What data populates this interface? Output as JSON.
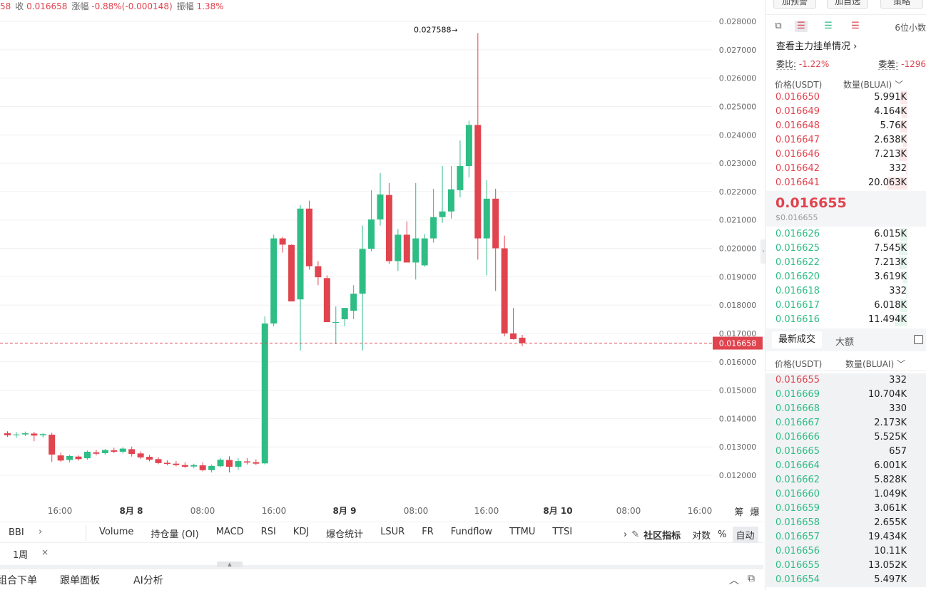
{
  "top_info": {
    "partial": "58",
    "close_label": "收",
    "close_value": "0.016658",
    "change_label": "涨幅",
    "change_value": "-0.88%(-0.000148)",
    "amp_label": "振幅",
    "amp_value": "1.38%"
  },
  "chart_data": {
    "type": "candlestick",
    "y_ticks": [
      "0.028000",
      "0.027000",
      "0.026000",
      "0.025000",
      "0.024000",
      "0.023000",
      "0.022000",
      "0.021000",
      "0.020000",
      "0.019000",
      "0.018000",
      "0.017000",
      "0.016000",
      "0.015000",
      "0.014000",
      "0.013000",
      "0.012000"
    ],
    "x_ticks": [
      "16:00",
      "8月 8",
      "08:00",
      "16:00",
      "8月 9",
      "08:00",
      "16:00",
      "8月 10",
      "08:00",
      "16:00"
    ],
    "current_price_label": "0.016658",
    "current_price": 0.016658,
    "high_label": "0.027588",
    "high_value": 0.027588,
    "ylim": [
      0.0113,
      0.0286
    ],
    "candles": [
      {
        "o": 0.01348,
        "h": 0.01355,
        "l": 0.01336,
        "c": 0.01341
      },
      {
        "o": 0.01342,
        "h": 0.01352,
        "l": 0.01333,
        "c": 0.01344
      },
      {
        "o": 0.01344,
        "h": 0.01354,
        "l": 0.01338,
        "c": 0.01348
      },
      {
        "o": 0.01347,
        "h": 0.01353,
        "l": 0.0132,
        "c": 0.0134
      },
      {
        "o": 0.01341,
        "h": 0.01349,
        "l": 0.01333,
        "c": 0.01345
      },
      {
        "o": 0.01343,
        "h": 0.0135,
        "l": 0.01247,
        "c": 0.01273
      },
      {
        "o": 0.0127,
        "h": 0.0128,
        "l": 0.01248,
        "c": 0.01252
      },
      {
        "o": 0.01254,
        "h": 0.01272,
        "l": 0.01245,
        "c": 0.01268
      },
      {
        "o": 0.01266,
        "h": 0.0127,
        "l": 0.01252,
        "c": 0.01257
      },
      {
        "o": 0.0126,
        "h": 0.01287,
        "l": 0.01255,
        "c": 0.01283
      },
      {
        "o": 0.01281,
        "h": 0.0129,
        "l": 0.0127,
        "c": 0.01276
      },
      {
        "o": 0.01278,
        "h": 0.01292,
        "l": 0.01272,
        "c": 0.01289
      },
      {
        "o": 0.01288,
        "h": 0.01297,
        "l": 0.01278,
        "c": 0.01283
      },
      {
        "o": 0.01283,
        "h": 0.01299,
        "l": 0.01277,
        "c": 0.01294
      },
      {
        "o": 0.01292,
        "h": 0.01301,
        "l": 0.01266,
        "c": 0.01275
      },
      {
        "o": 0.01277,
        "h": 0.01284,
        "l": 0.01258,
        "c": 0.01263
      },
      {
        "o": 0.01265,
        "h": 0.01272,
        "l": 0.01249,
        "c": 0.01255
      },
      {
        "o": 0.01257,
        "h": 0.01264,
        "l": 0.01239,
        "c": 0.01243
      },
      {
        "o": 0.01244,
        "h": 0.01253,
        "l": 0.01235,
        "c": 0.0124
      },
      {
        "o": 0.01241,
        "h": 0.0125,
        "l": 0.01232,
        "c": 0.01236
      },
      {
        "o": 0.01236,
        "h": 0.01246,
        "l": 0.01226,
        "c": 0.0123
      },
      {
        "o": 0.01231,
        "h": 0.01241,
        "l": 0.01225,
        "c": 0.01236
      },
      {
        "o": 0.01235,
        "h": 0.01245,
        "l": 0.01214,
        "c": 0.01218
      },
      {
        "o": 0.01218,
        "h": 0.01238,
        "l": 0.0121,
        "c": 0.01233
      },
      {
        "o": 0.01232,
        "h": 0.01261,
        "l": 0.01228,
        "c": 0.01255
      },
      {
        "o": 0.01254,
        "h": 0.01267,
        "l": 0.0121,
        "c": 0.0123
      },
      {
        "o": 0.0123,
        "h": 0.0126,
        "l": 0.0122,
        "c": 0.0125
      },
      {
        "o": 0.01249,
        "h": 0.01261,
        "l": 0.01238,
        "c": 0.01245
      },
      {
        "o": 0.01246,
        "h": 0.01256,
        "l": 0.01236,
        "c": 0.01241
      },
      {
        "o": 0.01242,
        "h": 0.0176,
        "l": 0.01238,
        "c": 0.01735
      },
      {
        "o": 0.01735,
        "h": 0.02048,
        "l": 0.01725,
        "c": 0.02035
      },
      {
        "o": 0.02035,
        "h": 0.0204,
        "l": 0.01985,
        "c": 0.02013
      },
      {
        "o": 0.02012,
        "h": 0.02014,
        "l": 0.01813,
        "c": 0.01813
      },
      {
        "o": 0.0182,
        "h": 0.02152,
        "l": 0.0164,
        "c": 0.0214
      },
      {
        "o": 0.0214,
        "h": 0.02168,
        "l": 0.01925,
        "c": 0.01937
      },
      {
        "o": 0.01937,
        "h": 0.01955,
        "l": 0.0187,
        "c": 0.01898
      },
      {
        "o": 0.01895,
        "h": 0.01905,
        "l": 0.0174,
        "c": 0.0174
      },
      {
        "o": 0.0174,
        "h": 0.01795,
        "l": 0.01662,
        "c": 0.0174
      },
      {
        "o": 0.0175,
        "h": 0.0179,
        "l": 0.01725,
        "c": 0.0179
      },
      {
        "o": 0.0178,
        "h": 0.0187,
        "l": 0.0175,
        "c": 0.0184
      },
      {
        "o": 0.0184,
        "h": 0.0208,
        "l": 0.0164,
        "c": 0.01998
      },
      {
        "o": 0.01998,
        "h": 0.02205,
        "l": 0.0199,
        "c": 0.02102
      },
      {
        "o": 0.02102,
        "h": 0.02265,
        "l": 0.0208,
        "c": 0.0219
      },
      {
        "o": 0.02188,
        "h": 0.0223,
        "l": 0.01945,
        "c": 0.01955
      },
      {
        "o": 0.01955,
        "h": 0.02068,
        "l": 0.0192,
        "c": 0.02048
      },
      {
        "o": 0.02048,
        "h": 0.02095,
        "l": 0.01955,
        "c": 0.0195
      },
      {
        "o": 0.0195,
        "h": 0.0223,
        "l": 0.0189,
        "c": 0.02035
      },
      {
        "o": 0.0194,
        "h": 0.0205,
        "l": 0.01935,
        "c": 0.02035
      },
      {
        "o": 0.02035,
        "h": 0.0221,
        "l": 0.0202,
        "c": 0.0211
      },
      {
        "o": 0.0211,
        "h": 0.0229,
        "l": 0.0209,
        "c": 0.0213
      },
      {
        "o": 0.0213,
        "h": 0.0229,
        "l": 0.02105,
        "c": 0.02208
      },
      {
        "o": 0.02205,
        "h": 0.0238,
        "l": 0.0218,
        "c": 0.0229
      },
      {
        "o": 0.0229,
        "h": 0.0245,
        "l": 0.0225,
        "c": 0.02435
      },
      {
        "o": 0.02435,
        "h": 0.02759,
        "l": 0.0196,
        "c": 0.02035
      },
      {
        "o": 0.02035,
        "h": 0.0224,
        "l": 0.01905,
        "c": 0.02175
      },
      {
        "o": 0.02175,
        "h": 0.0221,
        "l": 0.0185,
        "c": 0.02
      },
      {
        "o": 0.02,
        "h": 0.02045,
        "l": 0.0169,
        "c": 0.017
      },
      {
        "o": 0.017,
        "h": 0.0179,
        "l": 0.01678,
        "c": 0.0168
      },
      {
        "o": 0.01685,
        "h": 0.01695,
        "l": 0.01655,
        "c": 0.01666
      }
    ]
  },
  "axis_right": {
    "label_a": "筹",
    "label_b": "爆"
  },
  "indicator_bar": {
    "bbi": "BBI",
    "bbi_arrow": "›",
    "items": [
      "Volume",
      "持仓量 (OI)",
      "MACD",
      "RSI",
      "KDJ",
      "爆仓统计",
      "LSUR",
      "FR",
      "Fundflow",
      "TTMU",
      "TTSI"
    ],
    "more_arrow": "›",
    "edit_icon": "✎",
    "community": "社区指标",
    "log": "对数",
    "percent": "%",
    "auto": "自动"
  },
  "period": {
    "tag": "1周",
    "close": "×"
  },
  "bottom_tabs": {
    "t1": "组合下单",
    "t2": "跟单面板",
    "t3": "AI分析",
    "up_icon": "︿",
    "expand_icon": "⧉"
  },
  "right_panel": {
    "buttons": {
      "b1": "加预警",
      "b2": "加自选",
      "b3": "策略"
    },
    "decimals": "6位小数",
    "main_orders_link": "查看主力挂单情况 ›",
    "ratio_label": "委比:",
    "ratio_value": "-1.22%",
    "diff_label": "委差:",
    "diff_value": "-1296",
    "headers": {
      "price": "价格(USDT)",
      "qty": "数量(BLUAI) ﹀"
    },
    "asks": [
      {
        "p": "0.016650",
        "q": "5.991K",
        "d": 0.05
      },
      {
        "p": "0.016649",
        "q": "4.164K",
        "d": 0.04
      },
      {
        "p": "0.016648",
        "q": "5.76K",
        "d": 0.05
      },
      {
        "p": "0.016647",
        "q": "2.638K",
        "d": 0.03
      },
      {
        "p": "0.016646",
        "q": "7.213K",
        "d": 0.06
      },
      {
        "p": "0.016642",
        "q": "332",
        "d": 0.01
      },
      {
        "p": "0.016641",
        "q": "20.063K",
        "d": 0.14
      }
    ],
    "last_price": "0.016655",
    "last_price_usd": "$0.016655",
    "bids": [
      {
        "p": "0.016626",
        "q": "6.015K",
        "d": 0.05
      },
      {
        "p": "0.016625",
        "q": "7.545K",
        "d": 0.06
      },
      {
        "p": "0.016622",
        "q": "7.213K",
        "d": 0.06
      },
      {
        "p": "0.016620",
        "q": "3.619K",
        "d": 0.03
      },
      {
        "p": "0.016618",
        "q": "332",
        "d": 0.01
      },
      {
        "p": "0.016617",
        "q": "6.018K",
        "d": 0.05
      },
      {
        "p": "0.016616",
        "q": "11.494K",
        "d": 0.09
      }
    ],
    "trades_tab": "最新成交",
    "big_tab": "大额",
    "trades_headers": {
      "price": "价格(USDT)",
      "qty": "数量(BLUAI) ﹀"
    },
    "trades": [
      {
        "p": "0.016655",
        "q": "332",
        "side": "sell"
      },
      {
        "p": "0.016669",
        "q": "10.704K",
        "side": "buy"
      },
      {
        "p": "0.016668",
        "q": "330",
        "side": "buy"
      },
      {
        "p": "0.016667",
        "q": "2.173K",
        "side": "buy"
      },
      {
        "p": "0.016666",
        "q": "5.525K",
        "side": "buy"
      },
      {
        "p": "0.016665",
        "q": "657",
        "side": "buy"
      },
      {
        "p": "0.016664",
        "q": "6.001K",
        "side": "buy"
      },
      {
        "p": "0.016662",
        "q": "5.828K",
        "side": "buy"
      },
      {
        "p": "0.016660",
        "q": "1.049K",
        "side": "buy"
      },
      {
        "p": "0.016659",
        "q": "3.061K",
        "side": "buy"
      },
      {
        "p": "0.016658",
        "q": "2.655K",
        "side": "buy"
      },
      {
        "p": "0.016657",
        "q": "19.434K",
        "side": "buy"
      },
      {
        "p": "0.016656",
        "q": "10.11K",
        "side": "buy"
      },
      {
        "p": "0.016655",
        "q": "13.052K",
        "side": "buy"
      },
      {
        "p": "0.016654",
        "q": "5.497K",
        "side": "buy"
      }
    ]
  },
  "colors": {
    "up": "#2ebd85",
    "down": "#e0444f",
    "grid": "#f0f0f0",
    "axis_text": "#666666"
  }
}
